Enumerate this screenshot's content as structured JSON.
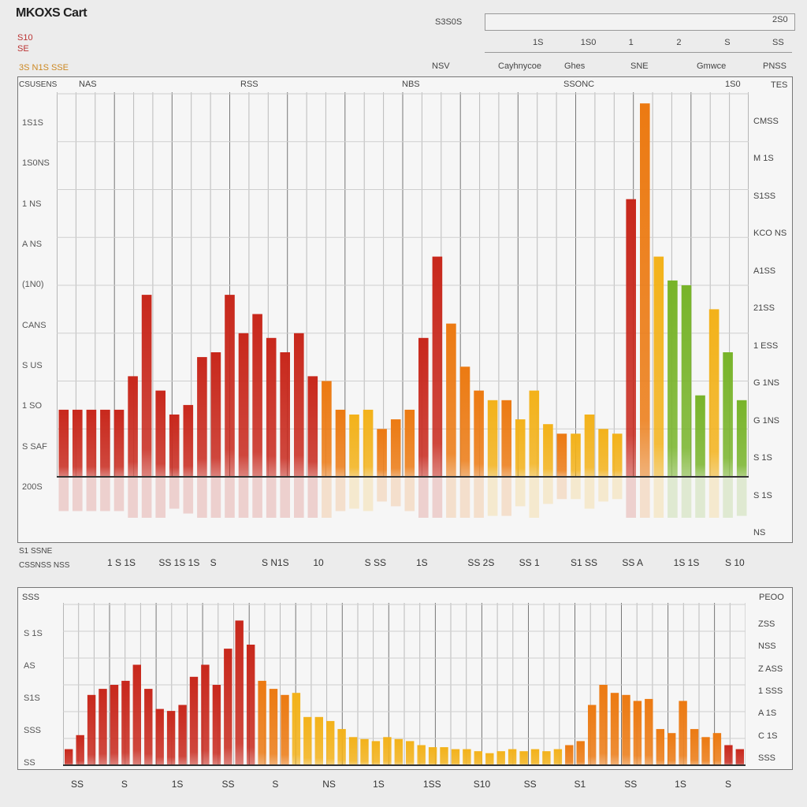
{
  "title": "MKOXS Cart",
  "colors": {
    "red": "#c8281c",
    "orange": "#ec7a12",
    "amber": "#f3b21a",
    "green": "#78b42a",
    "panel": "#f6f6f6",
    "bg": "#ececec"
  },
  "header": {
    "legend_a": "S10",
    "legend_b": "SE",
    "legend_c": "3S  N1S  SSE",
    "top_box_left": "S3S0S",
    "top_box_right": "2S0",
    "mid_labels": [
      "1S",
      "1S0",
      "1",
      "2",
      "S",
      "SS"
    ],
    "col_headers": [
      "NSV",
      "Cayhnycoe",
      "Ghes",
      "SNE",
      "Gmwce",
      "PNSS"
    ]
  },
  "panel1": {
    "corner_label": "CSUSENS",
    "top_labels": [
      "NAS",
      "RSS",
      "NBS",
      "SSONC",
      "1S0"
    ],
    "right_header": "TES",
    "left_ticks": [
      "1S1S",
      "1S0NS",
      "1 NS",
      "A NS",
      "(1N0)",
      "CANS",
      "S US",
      "1 SO",
      "S SAF",
      "200S"
    ],
    "right_ticks": [
      "CMSS",
      "M 1S",
      "S1SS",
      "KCO NS",
      "A1SS",
      "21SS",
      "1 ESS",
      "G 1NS",
      "G 1NS",
      "S 1S",
      "S 1S",
      "NS"
    ],
    "x_ticks": [
      "1 S 1S",
      "SS 1S 1S",
      "S",
      "S N1S",
      "10",
      "S SS",
      "1S",
      "SS 2S",
      "SS 1",
      "S1 SS",
      "SS A",
      "1S 1S",
      "S 10"
    ],
    "bottom_label_a": "S1 SSNE",
    "bottom_label_b": "CSSNSS NSS"
  },
  "panel2": {
    "corner_label": "SSS",
    "right_header": "PEOO",
    "left_ticks": [
      "S 1S",
      "AS",
      "S1S",
      "SSS",
      "SS"
    ],
    "right_ticks": [
      "ZSS",
      "NSS",
      "Z ASS",
      "1 SSS",
      "A 1S",
      "C 1S",
      "SSS"
    ],
    "x_ticks": [
      "SS",
      "S",
      "1S",
      "SS",
      "S",
      "NS",
      "1S",
      "1SS",
      "S10",
      "SS",
      "S1",
      "SS",
      "1S",
      "S"
    ]
  },
  "chart_data": [
    {
      "type": "bar",
      "title": "MKOXS Cart",
      "x": [
        1,
        2,
        3,
        4,
        5,
        6,
        7,
        8,
        9,
        10,
        11,
        12,
        13,
        14,
        15,
        16,
        17,
        18,
        19,
        20,
        21,
        22,
        23,
        24,
        25,
        26,
        27,
        28,
        29,
        30,
        31,
        32,
        33,
        34,
        35,
        36,
        37,
        38,
        39,
        40,
        41,
        42,
        43,
        44,
        45,
        46,
        47,
        48,
        49,
        50
      ],
      "values": [
        14,
        14,
        14,
        14,
        14,
        21,
        38,
        18,
        13,
        15,
        25,
        26,
        38,
        30,
        34,
        29,
        26,
        30,
        21,
        20,
        14,
        13,
        14,
        10,
        12,
        14,
        29,
        46,
        32,
        23,
        18,
        16,
        16,
        12,
        18,
        11,
        9,
        9,
        13,
        10,
        9,
        58,
        78,
        46,
        41,
        40,
        17,
        35,
        26,
        16
      ],
      "series_colors": [
        "red",
        "red",
        "red",
        "red",
        "red",
        "red",
        "red",
        "red",
        "red",
        "red",
        "red",
        "red",
        "red",
        "red",
        "red",
        "red",
        "red",
        "red",
        "red",
        "orange",
        "orange",
        "amber",
        "amber",
        "orange",
        "orange",
        "orange",
        "red",
        "red",
        "orange",
        "orange",
        "orange",
        "amber",
        "orange",
        "amber",
        "amber",
        "amber",
        "orange",
        "amber",
        "amber",
        "amber",
        "amber",
        "red",
        "orange",
        "amber",
        "green",
        "green",
        "green",
        "amber",
        "green",
        "green"
      ],
      "ylim": [
        0,
        80
      ],
      "grid": true
    },
    {
      "type": "bar",
      "x": [
        1,
        2,
        3,
        4,
        5,
        6,
        7,
        8,
        9,
        10,
        11,
        12,
        13,
        14,
        15,
        16,
        17,
        18,
        19,
        20,
        21,
        22,
        23,
        24,
        25,
        26,
        27,
        28,
        29,
        30,
        31,
        32,
        33,
        34,
        35,
        36,
        37,
        38,
        39,
        40,
        41,
        42,
        43,
        44,
        45,
        46,
        47,
        48,
        49,
        50,
        51,
        52,
        53,
        54,
        55,
        56,
        57,
        58,
        59,
        60
      ],
      "values": [
        8,
        15,
        35,
        38,
        40,
        42,
        50,
        38,
        28,
        27,
        30,
        44,
        50,
        40,
        58,
        72,
        60,
        42,
        38,
        35,
        36,
        24,
        24,
        22,
        18,
        14,
        13,
        12,
        14,
        13,
        12,
        10,
        9,
        9,
        8,
        8,
        7,
        6,
        7,
        8,
        7,
        8,
        7,
        8,
        10,
        12,
        30,
        40,
        36,
        35,
        32,
        33,
        18,
        16,
        32,
        18,
        14,
        16,
        10,
        8
      ],
      "series_colors": [
        "red",
        "red",
        "red",
        "red",
        "red",
        "red",
        "red",
        "red",
        "red",
        "red",
        "red",
        "red",
        "red",
        "red",
        "red",
        "red",
        "red",
        "orange",
        "orange",
        "orange",
        "amber",
        "amber",
        "amber",
        "amber",
        "amber",
        "amber",
        "amber",
        "amber",
        "amber",
        "amber",
        "amber",
        "amber",
        "amber",
        "amber",
        "amber",
        "amber",
        "amber",
        "amber",
        "amber",
        "amber",
        "amber",
        "amber",
        "amber",
        "amber",
        "orange",
        "orange",
        "orange",
        "orange",
        "orange",
        "orange",
        "orange",
        "orange",
        "orange",
        "orange",
        "orange",
        "orange",
        "orange",
        "orange",
        "red",
        "red"
      ],
      "ylim": [
        0,
        80
      ],
      "grid": true
    }
  ]
}
